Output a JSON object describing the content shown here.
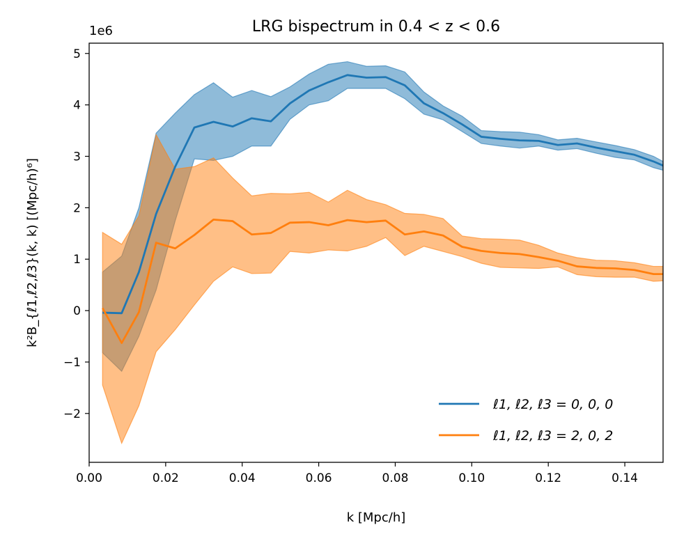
{
  "chart_data": {
    "type": "line",
    "title": "LRG bispectrum in 0.4 < z < 0.6",
    "xlabel": "k [Mpc/h]",
    "ylabel": "k²B_{ℓ1,ℓ2,ℓ3}(k, k) [(Mpc/h)⁶]",
    "y_offset_label": "1e6",
    "xlim": [
      0.0,
      0.15
    ],
    "ylim": [
      -2.95,
      5.2
    ],
    "xticks": [
      0.0,
      0.02,
      0.04,
      0.06,
      0.08,
      0.1,
      0.12,
      0.14
    ],
    "xtick_labels": [
      "0.00",
      "0.02",
      "0.04",
      "0.06",
      "0.08",
      "0.10",
      "0.12",
      "0.14"
    ],
    "yticks": [
      -2,
      -1,
      0,
      1,
      2,
      3,
      4,
      5
    ],
    "ytick_labels": [
      "−2",
      "−1",
      "0",
      "1",
      "2",
      "3",
      "4",
      "5"
    ],
    "legend_position": "lower-right",
    "x": [
      0.0035,
      0.0085,
      0.013,
      0.0175,
      0.0225,
      0.0275,
      0.0325,
      0.0375,
      0.0425,
      0.0475,
      0.0525,
      0.0575,
      0.0625,
      0.0675,
      0.0725,
      0.0775,
      0.0825,
      0.0875,
      0.0925,
      0.0975,
      0.1025,
      0.1075,
      0.1125,
      0.1175,
      0.1225,
      0.1275,
      0.1325,
      0.1375,
      0.1425,
      0.1475,
      0.15
    ],
    "series": [
      {
        "name": "ℓ1, ℓ2, ℓ3 = 0, 0, 0",
        "color": "#1f77b4",
        "values": [
          -0.04,
          -0.05,
          0.75,
          1.88,
          2.8,
          3.56,
          3.67,
          3.58,
          3.74,
          3.68,
          4.03,
          4.28,
          4.44,
          4.58,
          4.53,
          4.54,
          4.38,
          4.03,
          3.84,
          3.62,
          3.38,
          3.34,
          3.31,
          3.3,
          3.22,
          3.25,
          3.17,
          3.1,
          3.03,
          2.9,
          2.82
        ],
        "lower": [
          -0.82,
          -1.18,
          -0.5,
          0.4,
          1.75,
          2.95,
          2.92,
          3.0,
          3.2,
          3.2,
          3.72,
          4.0,
          4.08,
          4.32,
          4.32,
          4.32,
          4.12,
          3.82,
          3.71,
          3.48,
          3.25,
          3.2,
          3.16,
          3.2,
          3.12,
          3.15,
          3.06,
          2.98,
          2.93,
          2.78,
          2.73
        ],
        "upper": [
          0.75,
          1.06,
          2.0,
          3.45,
          3.84,
          4.2,
          4.43,
          4.15,
          4.28,
          4.16,
          4.35,
          4.6,
          4.79,
          4.84,
          4.75,
          4.76,
          4.64,
          4.25,
          3.98,
          3.78,
          3.5,
          3.48,
          3.47,
          3.42,
          3.32,
          3.35,
          3.28,
          3.21,
          3.13,
          3.0,
          2.9
        ]
      },
      {
        "name": "ℓ1, ℓ2, ℓ3 = 2, 0, 2",
        "color": "#ff7f0e",
        "values": [
          0.05,
          -0.63,
          -0.03,
          1.32,
          1.21,
          1.47,
          1.77,
          1.74,
          1.48,
          1.51,
          1.71,
          1.72,
          1.66,
          1.76,
          1.72,
          1.75,
          1.48,
          1.54,
          1.46,
          1.24,
          1.16,
          1.12,
          1.1,
          1.04,
          0.97,
          0.86,
          0.83,
          0.82,
          0.79,
          0.71,
          0.71
        ],
        "lower": [
          -1.45,
          -2.58,
          -1.85,
          -0.8,
          -0.37,
          0.11,
          0.57,
          0.85,
          0.72,
          0.73,
          1.15,
          1.12,
          1.18,
          1.16,
          1.25,
          1.42,
          1.07,
          1.25,
          1.15,
          1.05,
          0.92,
          0.84,
          0.83,
          0.82,
          0.85,
          0.7,
          0.66,
          0.65,
          0.65,
          0.57,
          0.58
        ],
        "upper": [
          1.52,
          1.29,
          1.84,
          3.42,
          2.75,
          2.8,
          2.97,
          2.58,
          2.23,
          2.28,
          2.27,
          2.3,
          2.11,
          2.34,
          2.16,
          2.06,
          1.89,
          1.87,
          1.79,
          1.45,
          1.4,
          1.39,
          1.37,
          1.27,
          1.12,
          1.03,
          0.98,
          0.97,
          0.93,
          0.86,
          0.86
        ]
      }
    ]
  }
}
